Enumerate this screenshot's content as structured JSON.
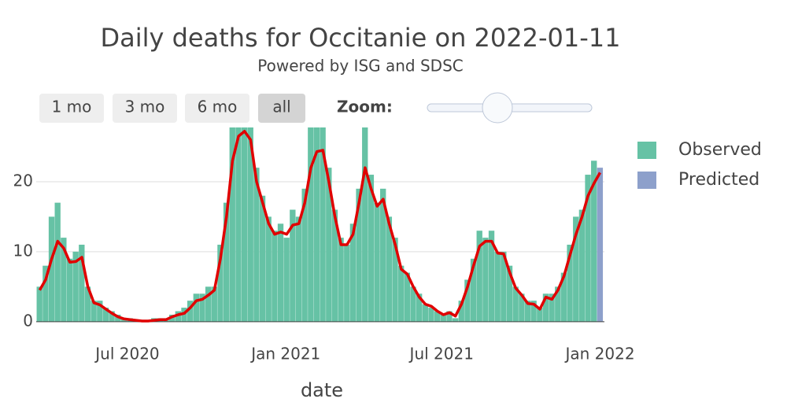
{
  "chart_data": {
    "type": "bar",
    "title": "Daily deaths for Occitanie on 2022-01-11",
    "subtitle": "Powered by ISG and SDSC",
    "controls": {
      "buttons": [
        "1 mo",
        "3 mo",
        "6 mo",
        "all"
      ],
      "zoom_label": "Zoom:"
    },
    "x_label": "date",
    "x_start": "2020-03-21",
    "x_step_days": 7,
    "series": [
      {
        "name": "Observed",
        "color": "#66c2a5",
        "values": [
          5,
          8,
          15,
          17,
          12,
          9,
          10,
          11,
          5,
          3,
          3,
          2,
          1.5,
          1,
          0.5,
          0.5,
          0,
          0,
          0,
          0.5,
          0.5,
          0.5,
          1,
          1.5,
          2,
          3,
          4,
          4,
          5,
          5,
          11,
          17,
          28,
          30,
          30,
          29,
          22,
          18,
          15,
          13,
          14,
          12,
          16,
          15,
          19,
          30,
          30,
          29,
          22,
          16,
          12,
          11,
          14,
          19,
          30,
          21,
          17,
          19,
          15,
          12,
          8,
          7,
          5,
          4,
          2.5,
          2,
          1.5,
          1,
          1.5,
          0.5,
          3,
          6,
          9,
          13,
          12,
          13,
          10,
          10,
          8,
          5,
          4,
          3,
          3,
          2,
          4,
          4,
          5,
          7,
          11,
          15,
          16,
          21,
          23,
          null
        ]
      },
      {
        "name": "Predicted",
        "color": "#8da0cb",
        "values": [
          null,
          null,
          null,
          null,
          null,
          null,
          null,
          null,
          null,
          null,
          null,
          null,
          null,
          null,
          null,
          null,
          null,
          null,
          null,
          null,
          null,
          null,
          null,
          null,
          null,
          null,
          null,
          null,
          null,
          null,
          null,
          null,
          null,
          null,
          null,
          null,
          null,
          null,
          null,
          null,
          null,
          null,
          null,
          null,
          null,
          null,
          null,
          null,
          null,
          null,
          null,
          null,
          null,
          null,
          null,
          null,
          null,
          null,
          null,
          null,
          null,
          null,
          null,
          null,
          null,
          null,
          null,
          null,
          null,
          null,
          null,
          null,
          null,
          null,
          null,
          null,
          null,
          null,
          null,
          null,
          null,
          null,
          null,
          null,
          null,
          null,
          null,
          null,
          null,
          null,
          null,
          null,
          null,
          22
        ]
      }
    ],
    "trend": {
      "color": "#e00000",
      "values": [
        4.5,
        6,
        9,
        11.5,
        10.5,
        8.5,
        8.6,
        9.2,
        5,
        2.7,
        2.4,
        1.8,
        1.2,
        0.7,
        0.4,
        0.3,
        0.2,
        0.1,
        0.1,
        0.2,
        0.3,
        0.3,
        0.7,
        1,
        1.2,
        2,
        3,
        3.2,
        3.8,
        4.5,
        9,
        15,
        23,
        26.5,
        27.2,
        26,
        20,
        17,
        14,
        12.5,
        12.8,
        12.5,
        13.8,
        14,
        17,
        22,
        24.3,
        24.5,
        20,
        15,
        11,
        11,
        12.5,
        17,
        22,
        19,
        16.5,
        17.5,
        14,
        11,
        7.5,
        6.8,
        5,
        3.5,
        2.5,
        2.2,
        1.5,
        1,
        1.3,
        0.8,
        2.5,
        5,
        8,
        10.8,
        11.5,
        11.5,
        9.8,
        9.7,
        7,
        4.8,
        3.8,
        2.6,
        2.5,
        1.8,
        3.5,
        3.2,
        4.5,
        6.5,
        9.5,
        12.5,
        15,
        18,
        19.8,
        21.3
      ]
    },
    "xlim": [
      "2020-03-17",
      "2022-01-06"
    ],
    "xticks": [
      {
        "value": "2020-07-01",
        "label": "Jul 2020"
      },
      {
        "value": "2021-01-01",
        "label": "Jan 2021"
      },
      {
        "value": "2021-07-01",
        "label": "Jul 2021"
      },
      {
        "value": "2022-01-01",
        "label": "Jan 2022"
      }
    ],
    "ylim": [
      -3.5,
      27.75
    ],
    "yticks": [
      0,
      10,
      20
    ],
    "grid": true,
    "legend": "right"
  }
}
